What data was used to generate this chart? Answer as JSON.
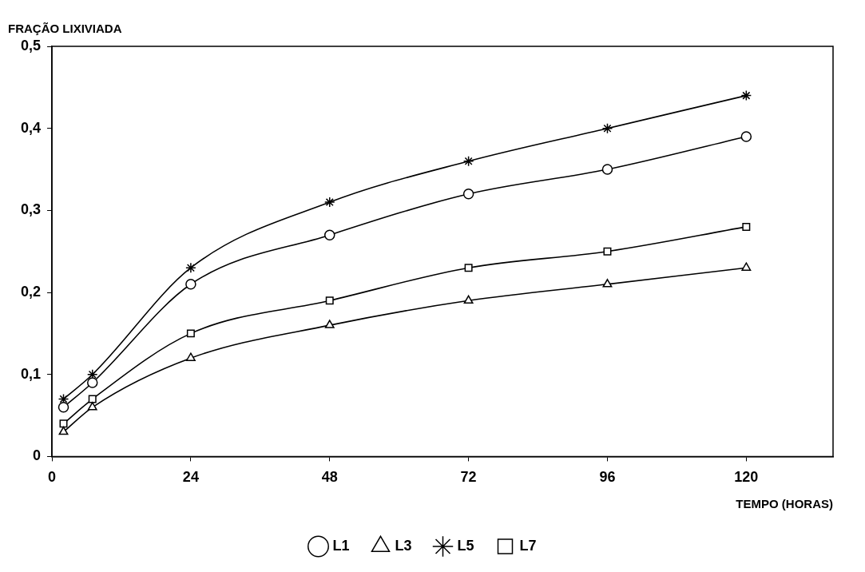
{
  "chart_data": {
    "type": "line",
    "xlabel": "TEMPO (HORAS)",
    "ylabel": "FRAÇÃO LIXIVIADA",
    "x": [
      2,
      7,
      24,
      48,
      72,
      96,
      120
    ],
    "xlim": [
      0,
      135
    ],
    "xticks": [
      0,
      24,
      48,
      72,
      96,
      120
    ],
    "ylim": [
      0,
      0.5
    ],
    "yticks": [
      0,
      {
        "value": 0.1,
        "label": "0,1"
      },
      {
        "value": 0.2,
        "label": "0,2"
      },
      {
        "value": 0.3,
        "label": "0,3"
      },
      {
        "value": 0.4,
        "label": "0,4"
      },
      {
        "value": 0.5,
        "label": "0,5"
      }
    ],
    "grid": false,
    "legend": "bottom",
    "line_style": "solid",
    "series": [
      {
        "name": "L1",
        "color": "#000000",
        "marker": "circle",
        "values": [
          0.06,
          0.09,
          0.21,
          0.27,
          0.32,
          0.35,
          0.39
        ]
      },
      {
        "name": "L3",
        "color": "#000000",
        "marker": "triangle",
        "values": [
          0.03,
          0.06,
          0.12,
          0.16,
          0.19,
          0.21,
          0.23
        ]
      },
      {
        "name": "L5",
        "color": "#000000",
        "marker": "cross",
        "values": [
          0.07,
          0.1,
          0.23,
          0.31,
          0.36,
          0.4,
          0.44
        ]
      },
      {
        "name": "L7",
        "color": "#000000",
        "marker": "square",
        "values": [
          0.04,
          0.07,
          0.15,
          0.19,
          0.23,
          0.25,
          0.28
        ]
      }
    ]
  }
}
